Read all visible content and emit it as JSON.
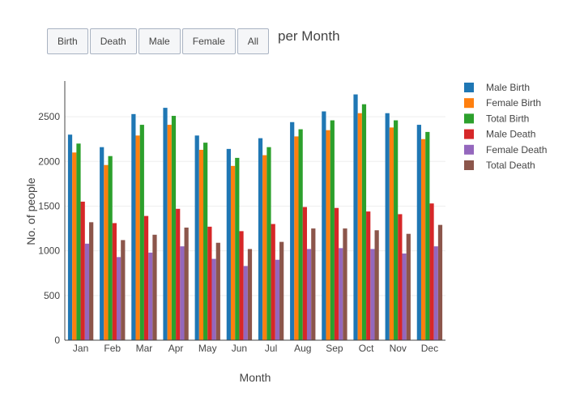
{
  "buttons": [
    {
      "label": "Birth"
    },
    {
      "label": "Death"
    },
    {
      "label": "Male"
    },
    {
      "label": "Female"
    },
    {
      "label": "All"
    }
  ],
  "chart_data": {
    "type": "bar",
    "title": "per Month",
    "xlabel": "Month",
    "ylabel": "No. of people",
    "ylim": [
      0,
      2900
    ],
    "yticks": [
      0,
      500,
      1000,
      1500,
      2000,
      2500
    ],
    "grid": true,
    "legend_position": "right",
    "categories": [
      "Jan",
      "Feb",
      "Mar",
      "Apr",
      "May",
      "Jun",
      "Jul",
      "Aug",
      "Sep",
      "Oct",
      "Nov",
      "Dec"
    ],
    "series": [
      {
        "name": "Male Birth",
        "color": "#1f77b4",
        "values": [
          2300,
          2160,
          2530,
          2600,
          2290,
          2140,
          2260,
          2440,
          2560,
          2750,
          2540,
          2410
        ]
      },
      {
        "name": "Female Birth",
        "color": "#ff7f0e",
        "values": [
          2100,
          1960,
          2290,
          2410,
          2130,
          1950,
          2070,
          2280,
          2350,
          2540,
          2380,
          2250
        ]
      },
      {
        "name": "Total Birth",
        "color": "#2ca02c",
        "values": [
          2200,
          2060,
          2410,
          2510,
          2210,
          2040,
          2160,
          2360,
          2460,
          2640,
          2460,
          2330
        ]
      },
      {
        "name": "Male Death",
        "color": "#d62728",
        "values": [
          1550,
          1310,
          1390,
          1470,
          1270,
          1220,
          1300,
          1490,
          1480,
          1440,
          1410,
          1530
        ]
      },
      {
        "name": "Female Death",
        "color": "#9467bd",
        "values": [
          1080,
          930,
          980,
          1050,
          910,
          830,
          900,
          1020,
          1030,
          1020,
          970,
          1050
        ]
      },
      {
        "name": "Total Death",
        "color": "#8c564b",
        "values": [
          1320,
          1120,
          1180,
          1260,
          1090,
          1020,
          1100,
          1250,
          1250,
          1230,
          1190,
          1290
        ]
      }
    ]
  }
}
